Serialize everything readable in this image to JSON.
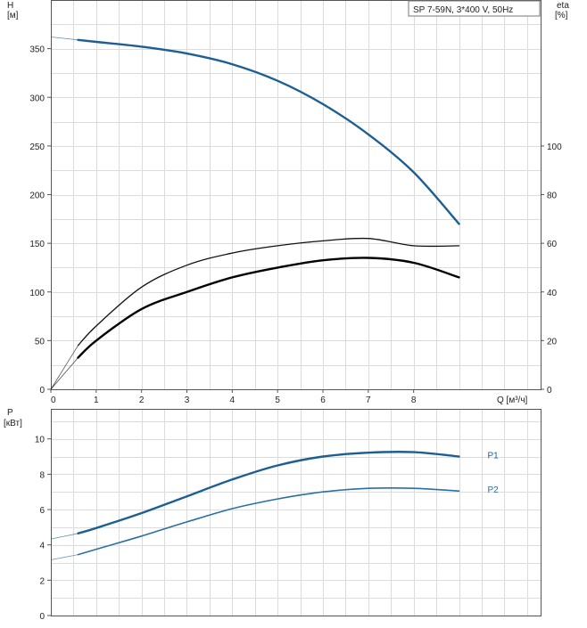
{
  "chart_data": [
    {
      "type": "line",
      "title": "SP 7-59N, 3*400 V, 50Hz",
      "ylabel": "H",
      "ylabel_unit": "[м]",
      "y2label": "eta",
      "y2label_unit": "[%]",
      "xlabel": "Q [м³/ч]",
      "xlim": [
        0,
        10.8
      ],
      "ylim": [
        0,
        400
      ],
      "y2lim": [
        0,
        160
      ],
      "x_ticks": [
        0,
        1,
        2,
        3,
        4,
        5,
        6,
        7,
        8
      ],
      "y_ticks": [
        0,
        50,
        100,
        150,
        200,
        250,
        300,
        350
      ],
      "y2_ticks": [
        0,
        20,
        40,
        60,
        80,
        100
      ],
      "grid": true,
      "series": [
        {
          "axis": "left",
          "color": "#1d5f93",
          "thin_x": [
            0,
            0.6
          ],
          "thin_y": [
            362,
            359
          ],
          "x": [
            0.6,
            1,
            2,
            3,
            4,
            5,
            6,
            7,
            8,
            9
          ],
          "y": [
            359,
            357,
            352,
            345,
            334,
            317,
            293,
            262,
            223,
            170
          ]
        },
        {
          "axis": "right",
          "color": "#111111",
          "thin_x": [
            0,
            0.6
          ],
          "thin_y": [
            0,
            18
          ],
          "x": [
            0.6,
            1,
            2,
            3,
            4,
            5,
            6,
            7,
            8,
            9
          ],
          "y": [
            18,
            26,
            42,
            51,
            56,
            59,
            61,
            62,
            59,
            59
          ]
        },
        {
          "axis": "right",
          "color": "#000000",
          "thin_x": [
            0,
            0.6
          ],
          "thin_y": [
            0,
            13
          ],
          "x": [
            0.6,
            1,
            2,
            3,
            4,
            5,
            6,
            7,
            8,
            9
          ],
          "y": [
            13,
            20,
            33,
            40,
            46,
            50,
            53,
            54,
            52,
            46
          ]
        }
      ]
    },
    {
      "type": "line",
      "ylabel": "P",
      "ylabel_unit": "[кВт]",
      "xlim": [
        0,
        10.8
      ],
      "ylim": [
        0,
        11.7
      ],
      "y_ticks": [
        0,
        2,
        4,
        6,
        8,
        10
      ],
      "grid": true,
      "series": [
        {
          "name": "P1",
          "color": "#1d5f93",
          "thin_x": [
            0,
            0.6
          ],
          "thin_y": [
            4.33,
            4.65
          ],
          "x": [
            0.6,
            1,
            2,
            3,
            4,
            5,
            6,
            7,
            8,
            9
          ],
          "y": [
            4.65,
            4.95,
            5.8,
            6.75,
            7.7,
            8.5,
            9.0,
            9.22,
            9.25,
            9.0
          ]
        },
        {
          "name": "P2",
          "color": "#2a6fa5",
          "thin_x": [
            0,
            0.6
          ],
          "thin_y": [
            3.15,
            3.45
          ],
          "x": [
            0.6,
            1,
            2,
            3,
            4,
            5,
            6,
            7,
            8,
            9
          ],
          "y": [
            3.45,
            3.75,
            4.5,
            5.3,
            6.05,
            6.6,
            7.0,
            7.2,
            7.2,
            7.05
          ]
        }
      ]
    }
  ]
}
